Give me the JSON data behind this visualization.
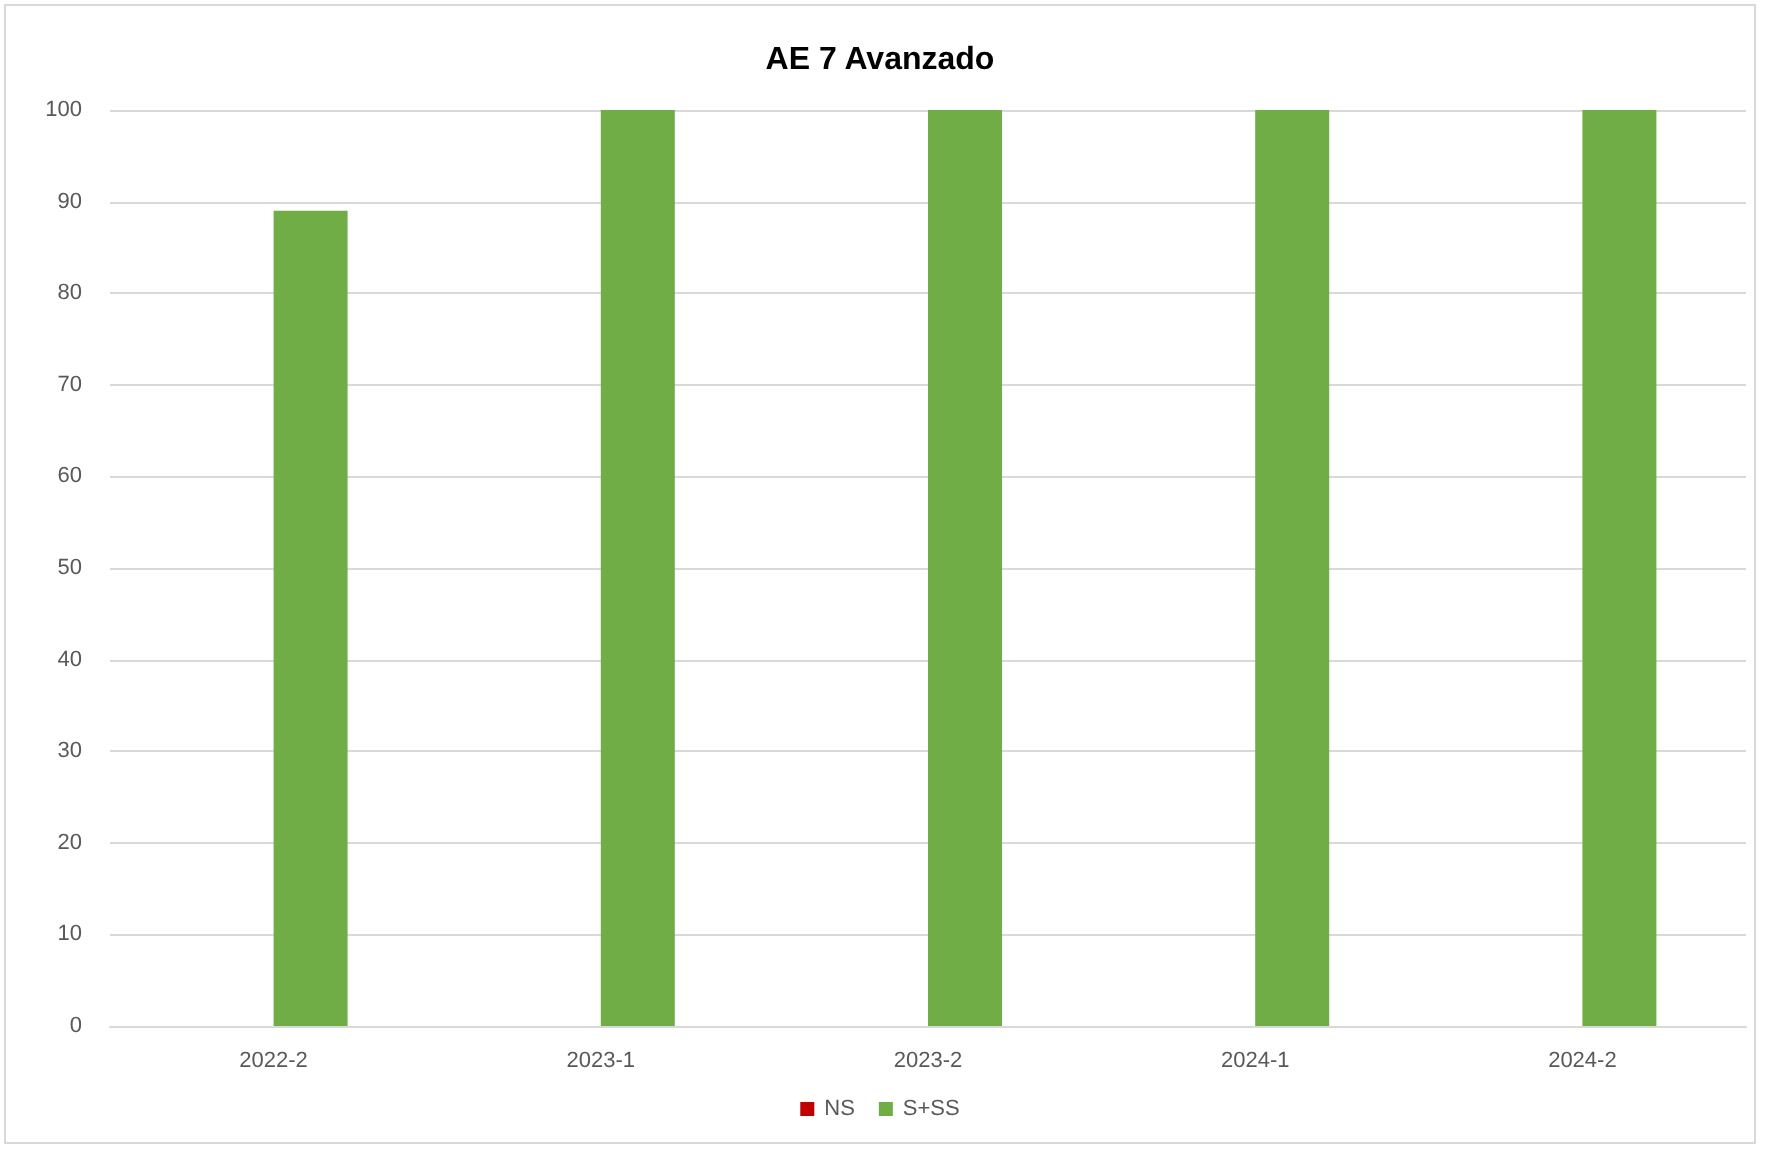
{
  "chart_data": {
    "type": "bar",
    "title": "AE 7 Avanzado",
    "categories": [
      "2022-2",
      "2023-1",
      "2023-2",
      "2024-1",
      "2024-2"
    ],
    "series": [
      {
        "name": "NS",
        "color": "#c00000",
        "values": [
          0,
          0,
          0,
          0,
          0
        ]
      },
      {
        "name": "S+SS",
        "color": "#70ad47",
        "values": [
          89,
          100,
          100,
          100,
          100
        ]
      }
    ],
    "ylim": [
      0,
      100
    ],
    "yticks": [
      0,
      10,
      20,
      30,
      40,
      50,
      60,
      70,
      80,
      90,
      100
    ],
    "grid": "y",
    "legend": "bottom"
  }
}
